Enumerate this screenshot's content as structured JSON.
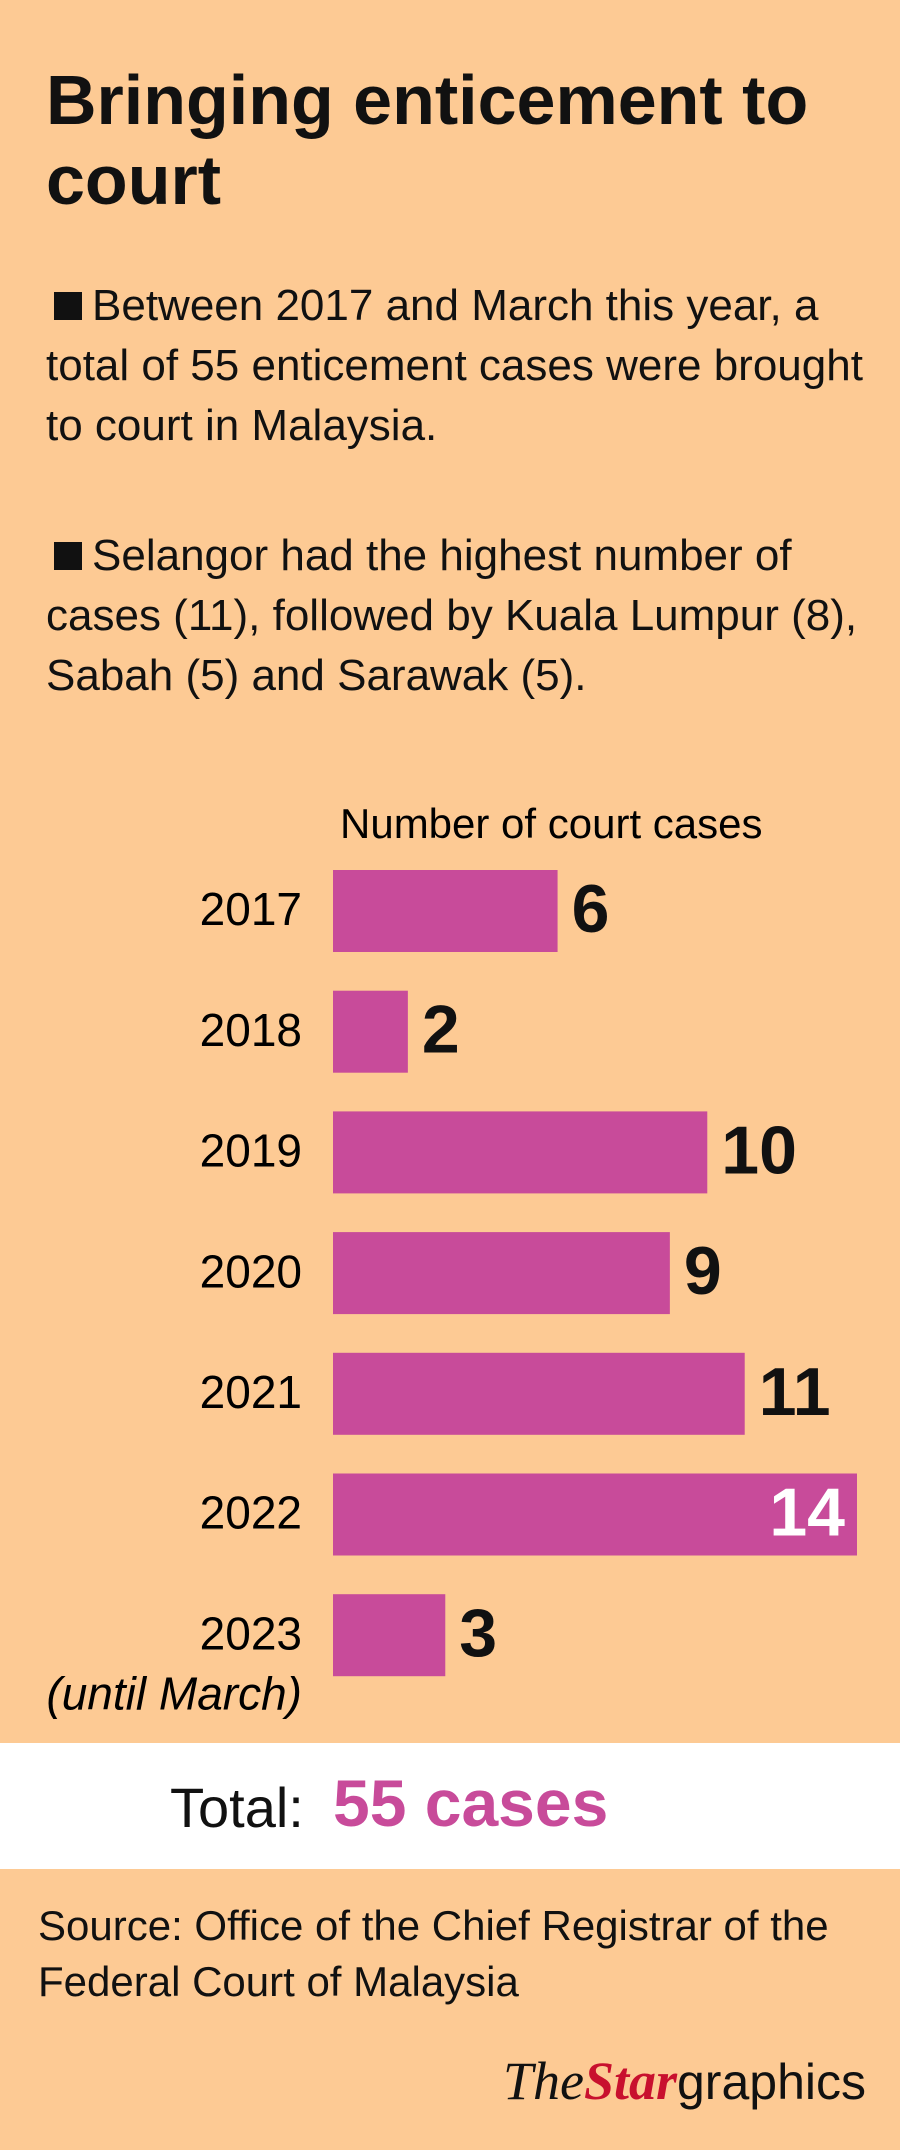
{
  "title": "Bringing enticement to court",
  "bullets": [
    "Between 2017 and March this year, a total of 55 enticement cases were brought to court in Malaysia.",
    "Selangor had the highest number of cases (11), followed by Kuala Lumpur (8), Sabah (5) and Sarawak (5)."
  ],
  "chart_data": {
    "type": "bar",
    "orientation": "horizontal",
    "axis_label": "Number of court cases",
    "categories": [
      "2017",
      "2018",
      "2019",
      "2020",
      "2021",
      "2022",
      "2023"
    ],
    "category_notes": [
      null,
      null,
      null,
      null,
      null,
      null,
      "(until March)"
    ],
    "values": [
      6,
      2,
      10,
      9,
      11,
      14,
      3
    ],
    "color": "#c84b9a",
    "xlim": [
      0,
      14
    ]
  },
  "total": {
    "label": "Total:",
    "value": "55 cases"
  },
  "source": "Source: Office of the Chief Registrar of the Federal Court of Malaysia",
  "logo": {
    "the": "The",
    "star": "Star",
    "graphics": "graphics"
  }
}
